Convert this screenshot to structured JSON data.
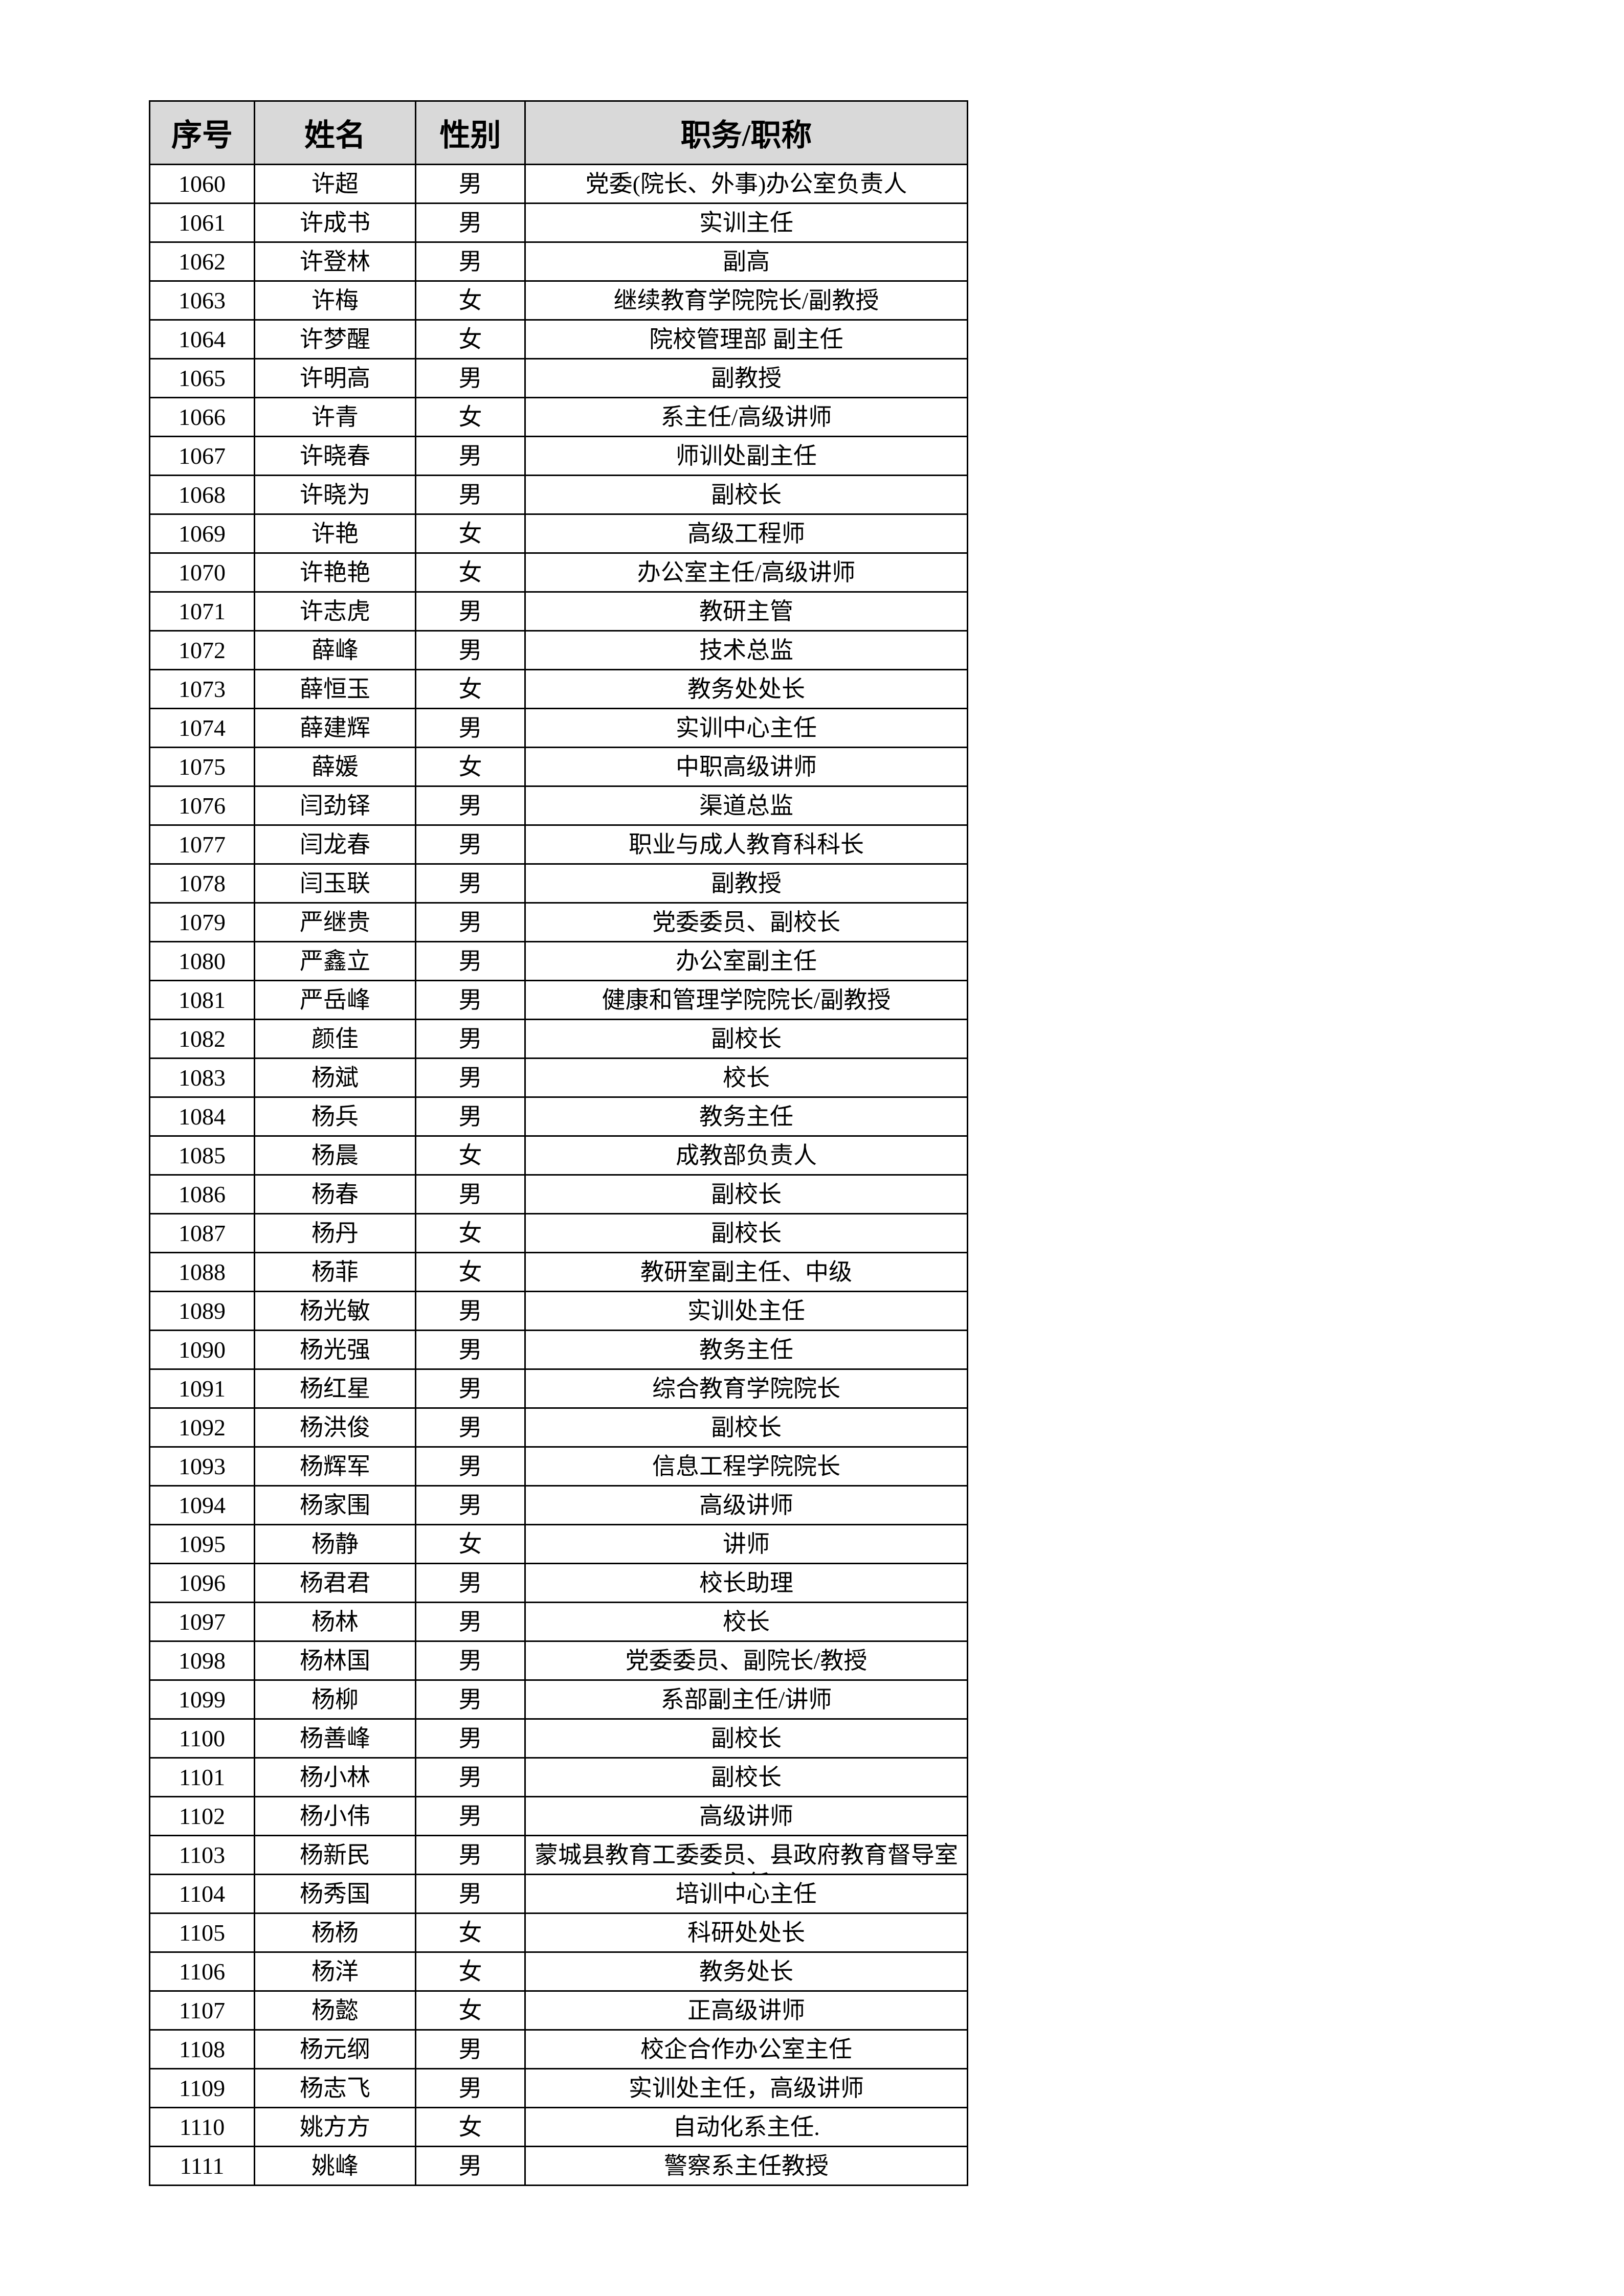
{
  "table": {
    "header": [
      "序号",
      "姓名",
      "性别",
      "职务/职称"
    ],
    "rows": [
      [
        1060,
        "许超",
        "男",
        "党委(院长、外事)办公室负责人"
      ],
      [
        1061,
        "许成书",
        "男",
        "实训主任"
      ],
      [
        1062,
        "许登林",
        "男",
        "副高"
      ],
      [
        1063,
        "许梅",
        "女",
        "继续教育学院院长/副教授"
      ],
      [
        1064,
        "许梦醒",
        "女",
        "院校管理部 副主任"
      ],
      [
        1065,
        "许明高",
        "男",
        "副教授"
      ],
      [
        1066,
        "许青",
        "女",
        "系主任/高级讲师"
      ],
      [
        1067,
        "许晓春",
        "男",
        "师训处副主任"
      ],
      [
        1068,
        "许晓为",
        "男",
        "副校长"
      ],
      [
        1069,
        "许艳",
        "女",
        "高级工程师"
      ],
      [
        1070,
        "许艳艳",
        "女",
        "办公室主任/高级讲师"
      ],
      [
        1071,
        "许志虎",
        "男",
        "教研主管"
      ],
      [
        1072,
        "薛峰",
        "男",
        "技术总监"
      ],
      [
        1073,
        "薛恒玉",
        "女",
        "教务处处长"
      ],
      [
        1074,
        "薛建辉",
        "男",
        "实训中心主任"
      ],
      [
        1075,
        "薛媛",
        "女",
        "中职高级讲师"
      ],
      [
        1076,
        "闫劲铎",
        "男",
        "渠道总监"
      ],
      [
        1077,
        "闫龙春",
        "男",
        "职业与成人教育科科长"
      ],
      [
        1078,
        "闫玉联",
        "男",
        "副教授"
      ],
      [
        1079,
        "严继贵",
        "男",
        "党委委员、副校长"
      ],
      [
        1080,
        "严鑫立",
        "男",
        "办公室副主任"
      ],
      [
        1081,
        "严岳峰",
        "男",
        "健康和管理学院院长/副教授"
      ],
      [
        1082,
        "颜佳",
        "男",
        "副校长"
      ],
      [
        1083,
        "杨斌",
        "男",
        "校长"
      ],
      [
        1084,
        "杨兵",
        "男",
        "教务主任"
      ],
      [
        1085,
        "杨晨",
        "女",
        "成教部负责人"
      ],
      [
        1086,
        "杨春",
        "男",
        "副校长"
      ],
      [
        1087,
        "杨丹",
        "女",
        "副校长"
      ],
      [
        1088,
        "杨菲",
        "女",
        "教研室副主任、中级"
      ],
      [
        1089,
        "杨光敏",
        "男",
        "实训处主任"
      ],
      [
        1090,
        "杨光强",
        "男",
        "教务主任"
      ],
      [
        1091,
        "杨红星",
        "男",
        "综合教育学院院长"
      ],
      [
        1092,
        "杨洪俊",
        "男",
        "副校长"
      ],
      [
        1093,
        "杨辉军",
        "男",
        "信息工程学院院长"
      ],
      [
        1094,
        "杨家围",
        "男",
        "高级讲师"
      ],
      [
        1095,
        "杨静",
        "女",
        "讲师"
      ],
      [
        1096,
        "杨君君",
        "男",
        "校长助理"
      ],
      [
        1097,
        "杨林",
        "男",
        "校长"
      ],
      [
        1098,
        "杨林国",
        "男",
        "党委委员、副院长/教授"
      ],
      [
        1099,
        "杨柳",
        "男",
        "系部副主任/讲师"
      ],
      [
        1100,
        "杨善峰",
        "男",
        "副校长"
      ],
      [
        1101,
        "杨小林",
        "男",
        "副校长"
      ],
      [
        1102,
        "杨小伟",
        "男",
        "高级讲师"
      ],
      [
        1103,
        "杨新民",
        "男",
        "蒙城县教育工委委员、县政府教育督导室主任"
      ],
      [
        1104,
        "杨秀国",
        "男",
        "培训中心主任"
      ],
      [
        1105,
        "杨杨",
        "女",
        "科研处处长"
      ],
      [
        1106,
        "杨洋",
        "女",
        "教务处长"
      ],
      [
        1107,
        "杨懿",
        "女",
        "正高级讲师"
      ],
      [
        1108,
        "杨元纲",
        "男",
        "校企合作办公室主任"
      ],
      [
        1109,
        "杨志飞",
        "男",
        "实训处主任，高级讲师"
      ],
      [
        1110,
        "姚方方",
        "女",
        "自动化系主任."
      ],
      [
        1111,
        "姚峰",
        "男",
        "警察系主任教授"
      ]
    ]
  }
}
